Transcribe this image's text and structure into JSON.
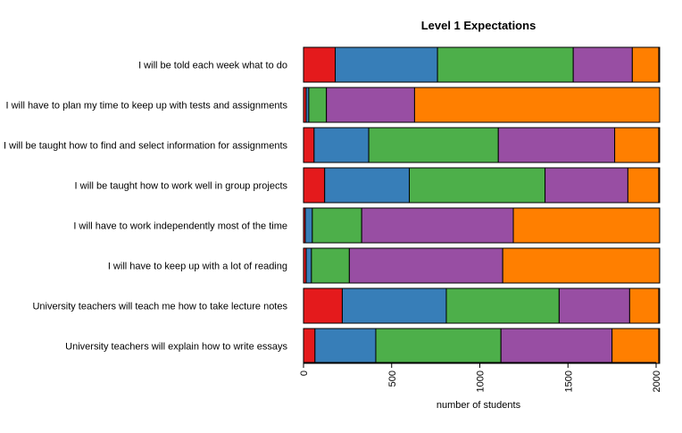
{
  "chart_data": {
    "type": "bar",
    "orientation": "horizontal",
    "stacked": true,
    "title": "Level 1 Expectations",
    "xlabel": "number of students",
    "ylabel": "",
    "xlim": [
      0,
      2020
    ],
    "xticks": [
      0,
      500,
      1000,
      1500,
      2000
    ],
    "grid": false,
    "legend": "none",
    "categories": [
      "I will be told each week what to do",
      "I will have to plan my time to keep up with tests and assignments",
      "I will be taught how to find and select information for assignments",
      "I will be taught how to work well in group projects",
      "I will have to work independently most of the time",
      "I will have to keep up with a lot of reading",
      "University teachers will teach me how to take lecture notes",
      "University teachers will explain how to write essays"
    ],
    "series": [
      {
        "color": "#e41a1c",
        "values": [
          180,
          15,
          60,
          120,
          10,
          15,
          220,
          65
        ]
      },
      {
        "color": "#377eb8",
        "values": [
          580,
          15,
          310,
          480,
          40,
          30,
          590,
          345
        ]
      },
      {
        "color": "#4daf4a",
        "values": [
          770,
          100,
          735,
          770,
          280,
          215,
          640,
          710
        ]
      },
      {
        "color": "#984ea3",
        "values": [
          335,
          500,
          660,
          470,
          860,
          870,
          400,
          630
        ]
      },
      {
        "color": "#ff7f00",
        "values": [
          150,
          1390,
          250,
          175,
          830,
          890,
          165,
          265
        ]
      }
    ]
  }
}
